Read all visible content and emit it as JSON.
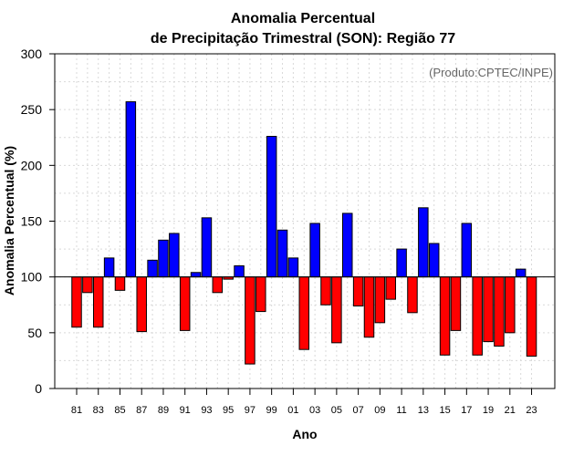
{
  "chart_data": {
    "type": "bar",
    "title_line1": "Anomalia Percentual",
    "title_line2": "de Precipitação Trimestral (SON): Região 77",
    "xlabel": "Ano",
    "ylabel": "Anomalia Percentual (%)",
    "credit": "(Produto:CPTEC/INPE)",
    "ylim": [
      0,
      300
    ],
    "yticks": [
      "0",
      "50",
      "100",
      "150",
      "200",
      "250",
      "300"
    ],
    "baseline": 100,
    "grid": true,
    "colors": {
      "above": "#0000ff",
      "below": "#ff0000"
    },
    "categories": [
      "81",
      "82",
      "83",
      "84",
      "85",
      "86",
      "87",
      "88",
      "89",
      "90",
      "91",
      "92",
      "93",
      "94",
      "95",
      "96",
      "97",
      "98",
      "99",
      "00",
      "01",
      "02",
      "03",
      "04",
      "05",
      "06",
      "07",
      "08",
      "09",
      "10",
      "11",
      "12",
      "13",
      "14",
      "15",
      "16",
      "17",
      "18",
      "19",
      "20",
      "21",
      "22",
      "23"
    ],
    "xtick_labels": [
      "81",
      "83",
      "85",
      "87",
      "89",
      "91",
      "93",
      "95",
      "97",
      "99",
      "01",
      "03",
      "05",
      "07",
      "09",
      "11",
      "13",
      "15",
      "17",
      "19",
      "21",
      "23"
    ],
    "values": [
      55,
      86,
      55,
      117,
      88,
      257,
      51,
      115,
      133,
      139,
      52,
      104,
      153,
      86,
      98,
      110,
      22,
      69,
      226,
      142,
      117,
      35,
      148,
      75,
      41,
      157,
      74,
      46,
      59,
      80,
      125,
      68,
      162,
      130,
      30,
      52,
      148,
      30,
      42,
      38,
      50,
      107,
      29
    ]
  }
}
